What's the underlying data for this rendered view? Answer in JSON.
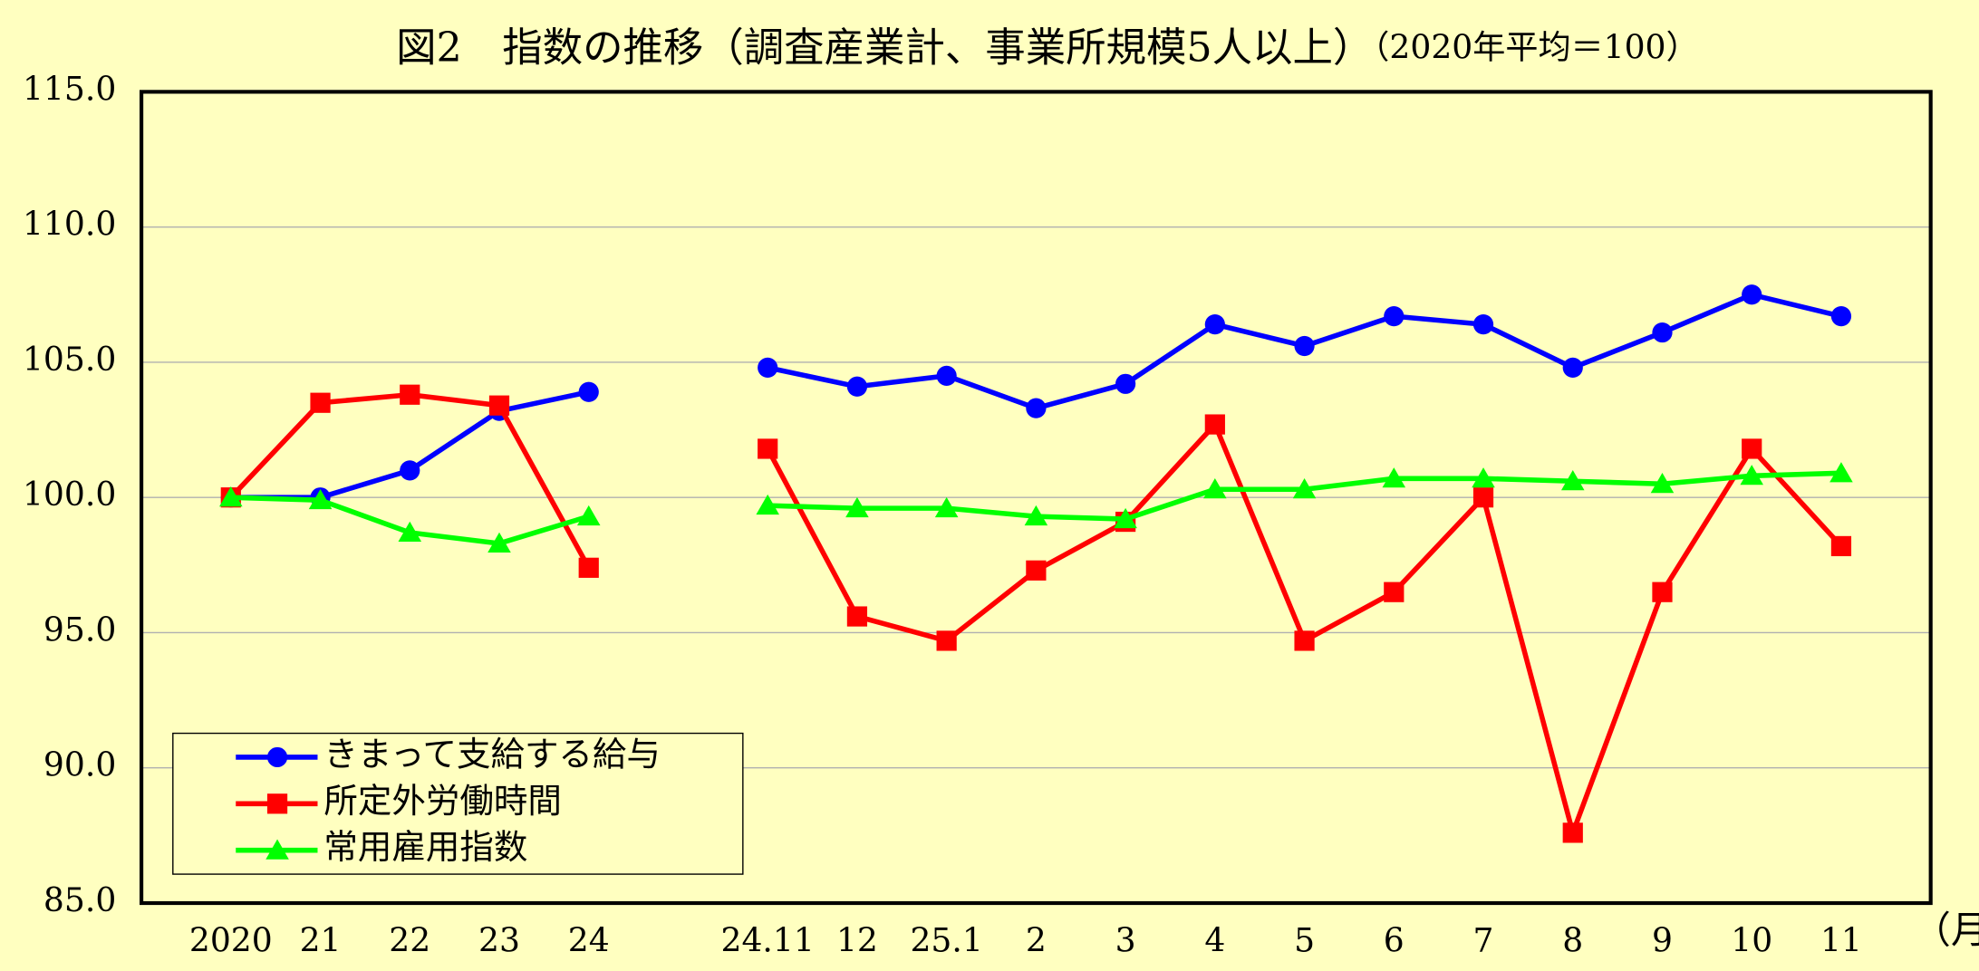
{
  "chart_data": {
    "type": "line",
    "title": "図2　指数の推移（調査産業計、事業所規模5人以上）",
    "subtitle": "（2020年平均＝100）",
    "x_label": "（月）",
    "categories": [
      "2020",
      "21",
      "22",
      "23",
      "24",
      null,
      "24.11",
      "12",
      "25.1",
      "2",
      "3",
      "4",
      "5",
      "6",
      "7",
      "8",
      "9",
      "10",
      "11"
    ],
    "series": [
      {
        "name": "きまって支給する給与",
        "color": "#0000ff",
        "marker": "circle",
        "values": [
          100.0,
          100.0,
          101.0,
          103.2,
          103.9,
          null,
          104.8,
          104.1,
          104.5,
          103.3,
          104.2,
          106.4,
          105.6,
          106.7,
          106.4,
          104.8,
          106.1,
          107.5,
          106.7
        ]
      },
      {
        "name": "所定外労働時間",
        "color": "#ff0000",
        "marker": "square",
        "values": [
          100.0,
          103.5,
          103.8,
          103.4,
          97.4,
          null,
          101.8,
          95.6,
          94.7,
          97.3,
          99.1,
          102.7,
          94.7,
          96.5,
          100.0,
          87.6,
          96.5,
          101.8,
          98.2
        ]
      },
      {
        "name": "常用雇用指数",
        "color": "#00ff00",
        "marker": "triangle",
        "values": [
          100.0,
          99.9,
          98.7,
          98.3,
          99.3,
          null,
          99.7,
          99.6,
          99.6,
          99.3,
          99.2,
          100.3,
          100.3,
          100.7,
          100.7,
          100.6,
          100.5,
          100.8,
          100.9
        ]
      }
    ],
    "ylim": [
      85,
      115
    ],
    "yticks": [
      {
        "value": 85,
        "label": "85.0"
      },
      {
        "value": 90,
        "label": "90.0"
      },
      {
        "value": 95,
        "label": "95.0"
      },
      {
        "value": 100,
        "label": "100.0"
      },
      {
        "value": 105,
        "label": "105.0"
      },
      {
        "value": 110,
        "label": "110.0"
      },
      {
        "value": 115,
        "label": "115.0"
      }
    ],
    "grid": true,
    "legend": "lower left"
  }
}
